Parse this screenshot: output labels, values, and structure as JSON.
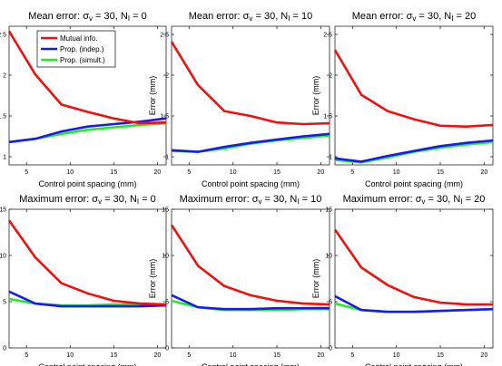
{
  "colors": {
    "mutual": "#ee1111",
    "indep": "#1a1aee",
    "simult": "#22ee22"
  },
  "chart_data": [
    {
      "type": "line",
      "title": "Mean error: σv = 30, NI = 0",
      "title_main": "Mean error: σ",
      "title_sub1": "v",
      "title_mid": " = 30, N",
      "title_sub2": "I",
      "title_end": " = 0",
      "xlabel": "Control point spacing (mm)",
      "ylabel": "Error (mm)",
      "xlim": [
        3,
        21
      ],
      "ylim": [
        0.9,
        2.6
      ],
      "xticks": [
        5,
        10,
        15,
        20
      ],
      "yticks": [
        1,
        1.5,
        2,
        2.5
      ],
      "xtick_labels": [
        "5",
        "10",
        "15",
        "20"
      ],
      "ytick_labels": [
        "1",
        "1.5",
        "2",
        "2.5"
      ],
      "x": [
        3,
        6,
        9,
        12,
        15,
        18,
        21
      ],
      "legend": {
        "position": "top-right",
        "entries": [
          "Mutual info.",
          "Prop. (indep.)",
          "Prop. (simult.)"
        ]
      },
      "series": [
        {
          "name": "Mutual info.",
          "values": [
            2.54,
            2.01,
            1.64,
            1.55,
            1.47,
            1.41,
            1.42
          ]
        },
        {
          "name": "Prop. (indep.)",
          "values": [
            1.18,
            1.22,
            1.31,
            1.37,
            1.4,
            1.43,
            1.47
          ]
        },
        {
          "name": "Prop. (simult.)",
          "values": [
            1.18,
            1.22,
            1.28,
            1.33,
            1.36,
            1.39,
            1.41
          ]
        }
      ]
    },
    {
      "type": "line",
      "title": "Mean error: σv = 30, NI = 10",
      "title_main": "Mean error: σ",
      "title_sub1": "v",
      "title_mid": " = 30, N",
      "title_sub2": "I",
      "title_end": " = 10",
      "xlabel": "Control point spacing (mm)",
      "ylabel": "Error (mm)",
      "xlim": [
        3,
        21
      ],
      "ylim": [
        0.9,
        2.6
      ],
      "xticks": [
        5,
        10,
        15,
        20
      ],
      "yticks": [
        1,
        1.5,
        2,
        2.5
      ],
      "xtick_labels": [
        "5",
        "10",
        "15",
        "20"
      ],
      "ytick_labels": [
        "1",
        "1.5",
        "2",
        "2.5"
      ],
      "x": [
        3,
        6,
        9,
        12,
        15,
        18,
        21
      ],
      "series": [
        {
          "name": "Mutual info.",
          "values": [
            2.41,
            1.88,
            1.56,
            1.5,
            1.42,
            1.4,
            1.41
          ]
        },
        {
          "name": "Prop. (indep.)",
          "values": [
            1.08,
            1.06,
            1.12,
            1.17,
            1.21,
            1.25,
            1.28
          ]
        },
        {
          "name": "Prop. (simult.)",
          "values": [
            1.07,
            1.06,
            1.1,
            1.16,
            1.2,
            1.23,
            1.26
          ]
        }
      ]
    },
    {
      "type": "line",
      "title": "Mean error: σv = 30, NI = 20",
      "title_main": "Mean error: σ",
      "title_sub1": "v",
      "title_mid": " = 30, N",
      "title_sub2": "I",
      "title_end": " = 20",
      "xlabel": "Control point spacing (mm)",
      "ylabel": "Error (mm)",
      "xlim": [
        3,
        21
      ],
      "ylim": [
        0.9,
        2.6
      ],
      "xticks": [
        5,
        10,
        15,
        20
      ],
      "yticks": [
        1,
        1.5,
        2,
        2.5
      ],
      "xtick_labels": [
        "5",
        "10",
        "15",
        "20"
      ],
      "ytick_labels": [
        "1",
        "1.5",
        "2",
        "2.5"
      ],
      "x": [
        3,
        6,
        9,
        12,
        15,
        18,
        21
      ],
      "series": [
        {
          "name": "Mutual info.",
          "values": [
            2.31,
            1.76,
            1.56,
            1.46,
            1.38,
            1.37,
            1.39
          ]
        },
        {
          "name": "Prop. (indep.)",
          "values": [
            0.98,
            0.94,
            1.01,
            1.07,
            1.13,
            1.17,
            1.2
          ]
        },
        {
          "name": "Prop. (simult.)",
          "values": [
            0.96,
            0.93,
            0.99,
            1.06,
            1.11,
            1.15,
            1.18
          ]
        }
      ]
    },
    {
      "type": "line",
      "title": "Maximum error: σv = 30, NI = 0",
      "title_main": "Maximum error: σ",
      "title_sub1": "v",
      "title_mid": " = 30, N",
      "title_sub2": "I",
      "title_end": " = 0",
      "xlabel": "Control point spacing (mm)",
      "ylabel": "Error (mm)",
      "xlim": [
        3,
        21
      ],
      "ylim": [
        0,
        15
      ],
      "xticks": [
        5,
        10,
        15,
        20
      ],
      "yticks": [
        0,
        5,
        10,
        15
      ],
      "xtick_labels": [
        "5",
        "10",
        "15",
        "20"
      ],
      "ytick_labels": [
        "0",
        "5",
        "10",
        "15"
      ],
      "x": [
        3,
        6,
        9,
        12,
        15,
        18,
        21
      ],
      "series": [
        {
          "name": "Mutual info.",
          "values": [
            13.8,
            9.8,
            7.0,
            5.9,
            5.1,
            4.8,
            4.7
          ]
        },
        {
          "name": "Prop. (indep.)",
          "values": [
            6.1,
            4.8,
            4.5,
            4.5,
            4.5,
            4.5,
            4.6
          ]
        },
        {
          "name": "Prop. (simult.)",
          "values": [
            5.3,
            4.8,
            4.6,
            4.6,
            4.7,
            4.7,
            4.7
          ]
        }
      ]
    },
    {
      "type": "line",
      "title": "Maximum error: σv = 30, NI = 10",
      "title_main": "Maximum error: σ",
      "title_sub1": "v",
      "title_mid": " = 30, N",
      "title_sub2": "I",
      "title_end": " = 10",
      "xlabel": "Control point spacing (mm)",
      "ylabel": "Error (mm)",
      "xlim": [
        3,
        21
      ],
      "ylim": [
        0,
        15
      ],
      "xticks": [
        5,
        10,
        15,
        20
      ],
      "yticks": [
        0,
        5,
        10,
        15
      ],
      "xtick_labels": [
        "5",
        "10",
        "15",
        "20"
      ],
      "ytick_labels": [
        "0",
        "5",
        "10",
        "15"
      ],
      "x": [
        3,
        6,
        9,
        12,
        15,
        18,
        21
      ],
      "series": [
        {
          "name": "Mutual info.",
          "values": [
            13.3,
            8.9,
            6.7,
            5.7,
            5.1,
            4.8,
            4.7
          ]
        },
        {
          "name": "Prop. (indep.)",
          "values": [
            5.7,
            4.4,
            4.2,
            4.2,
            4.3,
            4.3,
            4.3
          ]
        },
        {
          "name": "Prop. (simult.)",
          "values": [
            5.1,
            4.4,
            4.1,
            4.1,
            4.1,
            4.2,
            4.2
          ]
        }
      ]
    },
    {
      "type": "line",
      "title": "Maximum error: σv = 30, NI = 20",
      "title_main": "Maximum error: σ",
      "title_sub1": "v",
      "title_mid": " = 30, N",
      "title_sub2": "I",
      "title_end": " = 20",
      "xlabel": "Control point spacing (mm)",
      "ylabel": "Error (mm)",
      "xlim": [
        3,
        21
      ],
      "ylim": [
        0,
        15
      ],
      "xticks": [
        5,
        10,
        15,
        20
      ],
      "yticks": [
        0,
        5,
        10,
        15
      ],
      "xtick_labels": [
        "5",
        "10",
        "15",
        "20"
      ],
      "ytick_labels": [
        "0",
        "5",
        "10",
        "15"
      ],
      "x": [
        3,
        6,
        9,
        12,
        15,
        18,
        21
      ],
      "series": [
        {
          "name": "Mutual info.",
          "values": [
            12.8,
            8.7,
            6.8,
            5.5,
            4.9,
            4.7,
            4.7
          ]
        },
        {
          "name": "Prop. (indep.)",
          "values": [
            5.6,
            4.1,
            3.9,
            3.9,
            4.0,
            4.1,
            4.2
          ]
        },
        {
          "name": "Prop. (simult.)",
          "values": [
            4.8,
            4.1,
            3.9,
            3.9,
            4.0,
            4.1,
            4.2
          ]
        }
      ]
    }
  ]
}
